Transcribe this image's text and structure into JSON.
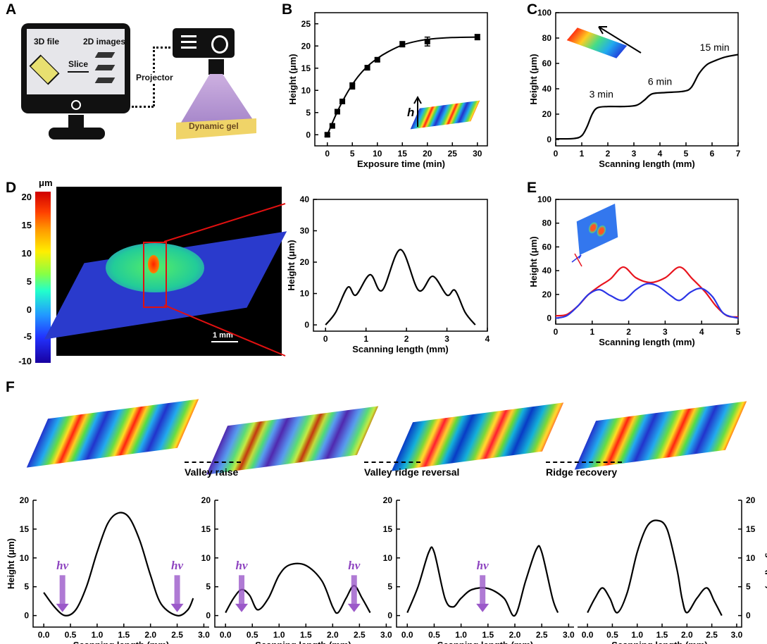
{
  "panel_labels": [
    "A",
    "B",
    "C",
    "D",
    "E",
    "F"
  ],
  "panel_a": {
    "file_label": "3D file",
    "images_label": "2D images",
    "slice_label": "Slice",
    "projector_label": "Projector",
    "gel_label": "Dynamic gel"
  },
  "panel_d_image": {
    "unit": "μm",
    "colorbar_ticks": [
      "20",
      "15",
      "10",
      "5",
      "0",
      "-5",
      "-10"
    ],
    "scale_bar": "1 mm"
  },
  "panel_f": {
    "steps": [
      "Valley raise",
      "Valley ridge reversal",
      "Ridge recovery"
    ],
    "hv_label": "hν"
  },
  "colors": {
    "red_series": "#e8141e",
    "blue_series": "#2b35e6",
    "hv_arrow": "#9b59c9"
  },
  "chart_data": [
    {
      "id": "B",
      "type": "line",
      "title": "",
      "xlabel": "Exposure time (min)",
      "ylabel": "Height (μm)",
      "xlim": [
        -2.5,
        32
      ],
      "ylim": [
        -2.5,
        27.5
      ],
      "xticks": [
        0,
        5,
        10,
        15,
        20,
        25,
        30
      ],
      "xtick_labels": [
        "0",
        "5",
        "10",
        "15",
        "20",
        "25",
        "30"
      ],
      "yticks": [
        0,
        5,
        10,
        15,
        20,
        25
      ],
      "ytick_labels": [
        "0",
        "5",
        "10",
        "15",
        "20",
        "25"
      ],
      "points": {
        "x": [
          0,
          1,
          2,
          3,
          5,
          8,
          10,
          15,
          20,
          30
        ],
        "y": [
          0,
          2,
          5.2,
          7.5,
          11,
          15.1,
          16.9,
          20.4,
          21,
          22
        ],
        "err": [
          0.4,
          0.4,
          0.5,
          0.5,
          0.7,
          0.5,
          0.4,
          0.6,
          1.0,
          0.6
        ]
      },
      "fit": {
        "x": [
          0,
          2,
          4,
          6,
          8,
          10,
          12,
          15,
          18,
          21,
          25,
          30
        ],
        "y": [
          0,
          5.2,
          9.5,
          12.9,
          15.4,
          17.2,
          18.6,
          20.2,
          21.1,
          21.6,
          21.9,
          22
        ]
      },
      "inset_label": "h"
    },
    {
      "id": "C",
      "type": "line",
      "xlabel": "Scanning length (mm)",
      "ylabel": "Height (μm)",
      "xlim": [
        0,
        7
      ],
      "ylim": [
        -5,
        100
      ],
      "xticks": [
        0,
        1,
        2,
        3,
        4,
        5,
        6,
        7
      ],
      "xtick_labels": [
        "0",
        "1",
        "2",
        "3",
        "4",
        "5",
        "6",
        "7"
      ],
      "yticks": [
        0,
        20,
        40,
        60,
        80,
        100
      ],
      "ytick_labels": [
        "0",
        "20",
        "40",
        "60",
        "80",
        "100"
      ],
      "series": [
        {
          "name": "profile",
          "color": "#000000",
          "x": [
            0,
            0.7,
            1.0,
            1.2,
            1.4,
            1.6,
            2.0,
            2.6,
            3.1,
            3.4,
            3.7,
            4.2,
            4.9,
            5.2,
            5.5,
            5.8,
            6.1,
            6.5,
            7.0
          ],
          "y": [
            0.5,
            0.8,
            3,
            10,
            20,
            25,
            26,
            26,
            27,
            31,
            36,
            37,
            38,
            41,
            52,
            59,
            62,
            65,
            67
          ]
        }
      ],
      "annotations": [
        {
          "text": "3 min",
          "x": 1.75,
          "y": 33
        },
        {
          "text": "6 min",
          "x": 4.0,
          "y": 43
        },
        {
          "text": "15 min",
          "x": 6.1,
          "y": 70
        }
      ]
    },
    {
      "id": "D",
      "type": "line",
      "xlabel": "Scanning length (mm)",
      "ylabel": "Height (μm)",
      "xlim": [
        -0.3,
        4
      ],
      "ylim": [
        -2,
        40
      ],
      "xticks": [
        0,
        1,
        2,
        3,
        4
      ],
      "xtick_labels": [
        "0",
        "1",
        "2",
        "3",
        "4"
      ],
      "yticks": [
        0,
        10,
        20,
        30,
        40
      ],
      "ytick_labels": [
        "0",
        "10",
        "20",
        "30",
        "40"
      ],
      "series": [
        {
          "name": "profile",
          "color": "#000000",
          "x": [
            0,
            0.25,
            0.55,
            0.75,
            1.1,
            1.4,
            1.85,
            2.3,
            2.65,
            3.0,
            3.2,
            3.45,
            3.7
          ],
          "y": [
            0,
            4,
            12,
            9.5,
            16,
            11,
            24,
            11,
            15.5,
            9.5,
            11,
            4,
            0
          ]
        }
      ]
    },
    {
      "id": "E",
      "type": "line",
      "xlabel": "Scanning length (mm)",
      "ylabel": "Height (μm)",
      "xlim": [
        0,
        5
      ],
      "ylim": [
        -5,
        100
      ],
      "xticks": [
        0,
        1,
        2,
        3,
        4,
        5
      ],
      "xtick_labels": [
        "0",
        "1",
        "2",
        "3",
        "4",
        "5"
      ],
      "yticks": [
        0,
        20,
        40,
        60,
        80,
        100
      ],
      "ytick_labels": [
        "0",
        "20",
        "40",
        "60",
        "80",
        "100"
      ],
      "series": [
        {
          "name": "red",
          "color": "#e8141e",
          "x": [
            0,
            0.3,
            0.6,
            0.9,
            1.2,
            1.5,
            1.85,
            2.2,
            2.6,
            3.0,
            3.4,
            3.75,
            4.1,
            4.4,
            4.7,
            5.0
          ],
          "y": [
            2,
            3,
            10,
            20,
            27,
            33,
            43,
            34,
            30,
            34,
            43,
            33,
            22,
            10,
            2,
            1
          ]
        },
        {
          "name": "blue",
          "color": "#2b35e6",
          "x": [
            0,
            0.3,
            0.6,
            0.9,
            1.2,
            1.5,
            1.85,
            2.2,
            2.5,
            2.8,
            3.15,
            3.4,
            3.7,
            4.0,
            4.3,
            4.6,
            5.0
          ],
          "y": [
            0,
            2,
            10,
            20,
            24,
            19,
            15,
            24,
            29,
            27,
            19,
            15,
            22,
            25,
            18,
            4,
            0
          ]
        }
      ]
    },
    {
      "id": "F1",
      "type": "line",
      "xlabel": "Scanning length (mm)",
      "ylabel": "Height (μm)",
      "xlim": [
        -0.2,
        3.1
      ],
      "ylim": [
        -2,
        20
      ],
      "xticks": [
        0,
        0.5,
        1,
        1.5,
        2,
        2.5,
        3
      ],
      "xtick_labels": [
        "0.0",
        "0.5",
        "1.0",
        "1.5",
        "2.0",
        "2.5",
        "3.0"
      ],
      "yticks": [
        0,
        5,
        10,
        15,
        20
      ],
      "ytick_labels": [
        "0",
        "5",
        "10",
        "15",
        "20"
      ],
      "series": [
        {
          "name": "profile",
          "color": "#000000",
          "x": [
            0,
            0.2,
            0.4,
            0.6,
            0.8,
            1.0,
            1.2,
            1.4,
            1.6,
            1.8,
            2.0,
            2.2,
            2.5,
            2.7,
            2.8
          ],
          "y": [
            4,
            1.5,
            0,
            1,
            5,
            11,
            16,
            17.8,
            17,
            13,
            7,
            2,
            0,
            1,
            3
          ]
        }
      ],
      "hv_x": [
        0.35,
        2.5
      ]
    },
    {
      "id": "F2",
      "type": "line",
      "xlabel": "Scanning length (mm)",
      "ylabel": "",
      "xlim": [
        -0.2,
        3.1
      ],
      "ylim": [
        -2,
        20
      ],
      "xticks": [
        0,
        0.5,
        1,
        1.5,
        2,
        2.5,
        3
      ],
      "xtick_labels": [
        "0.0",
        "0.5",
        "1.0",
        "1.5",
        "2.0",
        "2.5",
        "3.0"
      ],
      "yticks": [
        0,
        5,
        10,
        15,
        20
      ],
      "ytick_labels": [
        "0",
        "5",
        "10",
        "15",
        "20"
      ],
      "series": [
        {
          "name": "profile",
          "color": "#000000",
          "x": [
            0,
            0.15,
            0.3,
            0.45,
            0.6,
            0.8,
            1.0,
            1.2,
            1.5,
            1.8,
            2.0,
            2.1,
            2.25,
            2.4,
            2.55,
            2.7
          ],
          "y": [
            0.5,
            3,
            4.5,
            3.5,
            1,
            3,
            7,
            8.8,
            8.7,
            6,
            1.5,
            0.5,
            3,
            5.2,
            3,
            0.5
          ]
        }
      ],
      "hv_x": [
        0.3,
        2.4
      ]
    },
    {
      "id": "F3",
      "type": "line",
      "xlabel": "Scanning length (mm)",
      "ylabel": "",
      "xlim": [
        -0.2,
        3.1
      ],
      "ylim": [
        -2,
        20
      ],
      "xticks": [
        0,
        0.5,
        1,
        1.5,
        2,
        2.5,
        3
      ],
      "xtick_labels": [
        "0.0",
        "0.5",
        "1.0",
        "1.5",
        "2.0",
        "2.5",
        "3.0"
      ],
      "yticks": [
        0,
        5,
        10,
        15,
        20
      ],
      "ytick_labels": [
        "0",
        "5",
        "10",
        "15",
        "20"
      ],
      "series": [
        {
          "name": "profile",
          "color": "#000000",
          "x": [
            0,
            0.2,
            0.4,
            0.5,
            0.7,
            0.85,
            1.0,
            1.2,
            1.5,
            1.8,
            2.0,
            2.2,
            2.4,
            2.5,
            2.7,
            2.8
          ],
          "y": [
            0.5,
            5,
            11,
            11,
            3,
            1.5,
            3,
            4.5,
            4.7,
            3,
            0,
            6,
            11.5,
            11,
            3,
            0.5
          ]
        }
      ],
      "hv_x": [
        1.4
      ]
    },
    {
      "id": "F4",
      "type": "line",
      "xlabel": "Scanning length (mm)",
      "ylabel": "Height (μm)",
      "xlim": [
        -0.2,
        3.1
      ],
      "ylim": [
        -2,
        20
      ],
      "xticks": [
        0,
        0.5,
        1,
        1.5,
        2,
        2.5,
        3
      ],
      "xtick_labels": [
        "0.0",
        "0.5",
        "1.0",
        "1.5",
        "2.0",
        "2.5",
        "3.0"
      ],
      "yticks": [
        0,
        5,
        10,
        15,
        20
      ],
      "ytick_labels": [
        "0",
        "5",
        "10",
        "15",
        "20"
      ],
      "series": [
        {
          "name": "profile",
          "color": "#000000",
          "x": [
            0,
            0.15,
            0.3,
            0.45,
            0.6,
            0.8,
            1.0,
            1.2,
            1.4,
            1.6,
            1.8,
            1.9,
            2.0,
            2.2,
            2.4,
            2.55,
            2.7
          ],
          "y": [
            0.5,
            3,
            4.8,
            3,
            0.5,
            4,
            11,
            15.5,
            16.5,
            15,
            8,
            3,
            0.5,
            3,
            4.8,
            2.5,
            0
          ]
        }
      ],
      "hv_x": []
    }
  ]
}
